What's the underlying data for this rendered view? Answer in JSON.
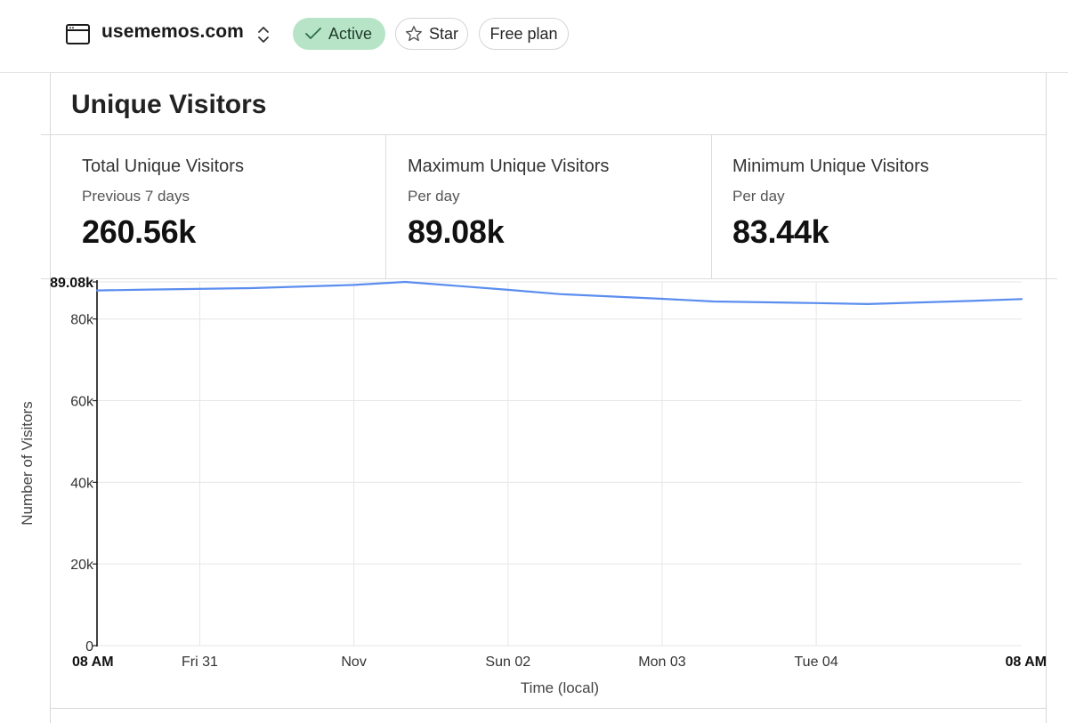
{
  "header": {
    "site_icon": "browser-window-icon",
    "site_name": "usememos.com",
    "switcher_icon": "chevron-up-down-icon",
    "status_badge": "Active",
    "status_icon": "check-icon",
    "star_label": "Star",
    "star_icon": "star-icon",
    "plan_label": "Free plan"
  },
  "card": {
    "title": "Unique Visitors",
    "stats": [
      {
        "label": "Total Unique Visitors",
        "sub": "Previous 7 days",
        "value": "260.56k"
      },
      {
        "label": "Maximum Unique Visitors",
        "sub": "Per day",
        "value": "89.08k"
      },
      {
        "label": "Minimum Unique Visitors",
        "sub": "Per day",
        "value": "83.44k"
      }
    ]
  },
  "colors": {
    "accent_green": "#b7e4c7",
    "line_blue": "#5b8def",
    "grid": "#e6e6e6"
  },
  "chart_data": {
    "type": "line",
    "title": "",
    "xlabel": "Time (local)",
    "ylabel": "Number of Visitors",
    "ylim": [
      0,
      89080
    ],
    "y_ticks": [
      {
        "value": 0,
        "label": "0"
      },
      {
        "value": 20000,
        "label": "20k"
      },
      {
        "value": 40000,
        "label": "40k"
      },
      {
        "value": 60000,
        "label": "60k"
      },
      {
        "value": 80000,
        "label": "80k"
      },
      {
        "value": 89080,
        "label": "89.08k",
        "emphasis": true
      }
    ],
    "x_domain_hours": [
      0,
      144
    ],
    "x_ticks": [
      {
        "hour": 0,
        "label": "08 AM",
        "emphasis": true
      },
      {
        "hour": 16,
        "label": "Fri 31"
      },
      {
        "hour": 40,
        "label": "Nov"
      },
      {
        "hour": 64,
        "label": "Sun 02"
      },
      {
        "hour": 88,
        "label": "Mon 03"
      },
      {
        "hour": 112,
        "label": "Tue 04"
      },
      {
        "hour": 144,
        "label": "08 AM",
        "emphasis": true
      }
    ],
    "series": [
      {
        "name": "Unique Visitors",
        "x": [
          0,
          8,
          24,
          40,
          48,
          64,
          72,
          88,
          96,
          112,
          120,
          136,
          144
        ],
        "y": [
          87000,
          87200,
          87550,
          88350,
          89080,
          87150,
          86100,
          84950,
          84280,
          83900,
          83650,
          84420,
          84880
        ]
      }
    ]
  }
}
